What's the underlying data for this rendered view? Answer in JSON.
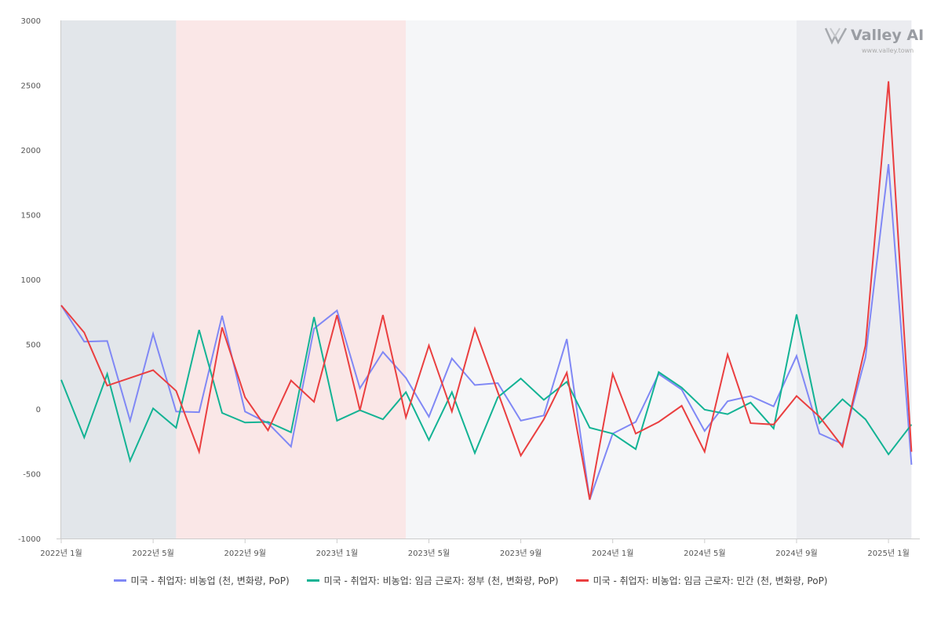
{
  "chart_data": {
    "type": "line",
    "title": "",
    "xlabel": "",
    "ylabel": "",
    "ylim": [
      -1000,
      3000
    ],
    "yticks": [
      "-1000",
      "-500",
      "0",
      "500",
      "1000",
      "1500",
      "2000",
      "2500",
      "3000"
    ],
    "ytick_values": [
      -1000,
      -500,
      0,
      500,
      1000,
      1500,
      2000,
      2500,
      3000
    ],
    "x_start": "2022-01",
    "x_count": 38,
    "xticks": [
      {
        "month_index": 0,
        "label": "2022년 1월"
      },
      {
        "month_index": 4,
        "label": "2022년 5월"
      },
      {
        "month_index": 8,
        "label": "2022년 9월"
      },
      {
        "month_index": 12,
        "label": "2023년 1월"
      },
      {
        "month_index": 16,
        "label": "2023년 5월"
      },
      {
        "month_index": 20,
        "label": "2023년 9월"
      },
      {
        "month_index": 24,
        "label": "2024년 1월"
      },
      {
        "month_index": 28,
        "label": "2024년 5월"
      },
      {
        "month_index": 32,
        "label": "2024년 9월"
      },
      {
        "month_index": 36,
        "label": "2025년 1월"
      }
    ],
    "bands": [
      {
        "from": 0,
        "to": 5,
        "color": "#e2e6ea"
      },
      {
        "from": 5,
        "to": 15,
        "color": "#fae7e7"
      },
      {
        "from": 15,
        "to": 32,
        "color": "#f5f6f8"
      },
      {
        "from": 32,
        "to": 37,
        "color": "#ebecf0"
      }
    ],
    "legend_position": "bottom",
    "series": [
      {
        "name": "미국 - 취업자: 비농업 (천, 변화량, PoP)",
        "color": "#8088f5",
        "values": [
          800,
          520,
          525,
          -90,
          580,
          -20,
          -25,
          720,
          -20,
          -110,
          -290,
          620,
          760,
          160,
          440,
          240,
          -60,
          390,
          185,
          200,
          -90,
          -50,
          540,
          -700,
          -190,
          -100,
          270,
          150,
          -170,
          60,
          100,
          20,
          410,
          -190,
          -270,
          400,
          1890,
          -430
        ]
      },
      {
        "name": "미국 - 취업자: 비농업: 임금 근로자: 정부 (천, 변화량, PoP)",
        "color": "#13b394",
        "values": [
          225,
          -220,
          270,
          -400,
          5,
          -145,
          610,
          -30,
          -105,
          -100,
          -180,
          710,
          -90,
          -10,
          -80,
          130,
          -240,
          130,
          -340,
          90,
          235,
          70,
          210,
          -145,
          -190,
          -310,
          285,
          165,
          -5,
          -40,
          50,
          -150,
          730,
          -110,
          75,
          -80,
          -350,
          -120
        ]
      },
      {
        "name": "미국 - 취업자: 비농업: 임금 근로자: 민간 (천, 변화량, PoP)",
        "color": "#ea3f40",
        "values": [
          800,
          590,
          180,
          240,
          300,
          140,
          -330,
          630,
          90,
          -165,
          220,
          55,
          725,
          -10,
          725,
          -65,
          490,
          -20,
          620,
          130,
          -360,
          -80,
          280,
          -700,
          270,
          -190,
          -100,
          25,
          -330,
          420,
          -110,
          -120,
          100,
          -60,
          -290,
          490,
          2530,
          -330
        ]
      }
    ]
  },
  "watermark": {
    "name": "Valley AI",
    "url": "www.valley.town"
  }
}
